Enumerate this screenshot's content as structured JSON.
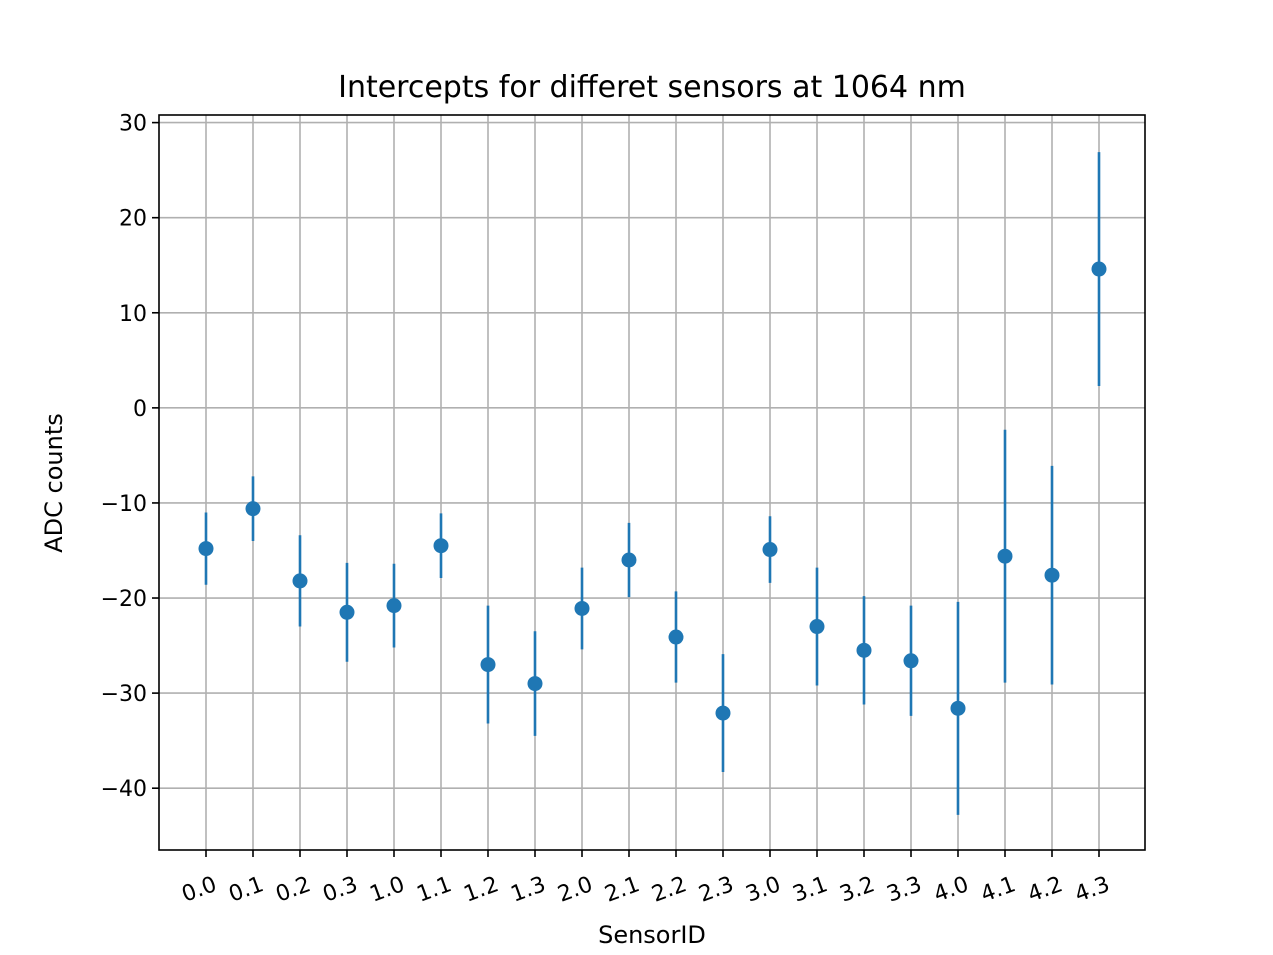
{
  "chart_data": {
    "type": "scatter",
    "title": "Intercepts for differet sensors at 1064 nm",
    "xlabel": "SensorID",
    "ylabel": "ADC counts",
    "categories": [
      "0.0",
      "0.1",
      "0.2",
      "0.3",
      "1.0",
      "1.1",
      "1.2",
      "1.3",
      "2.0",
      "2.1",
      "2.2",
      "2.3",
      "3.0",
      "3.1",
      "3.2",
      "3.3",
      "4.0",
      "4.1",
      "4.2",
      "4.3"
    ],
    "series": [
      {
        "values": [
          -14.8,
          -10.6,
          -18.2,
          -21.5,
          -20.8,
          -14.5,
          -27.0,
          -29.0,
          -21.1,
          -16.0,
          -24.1,
          -32.1,
          -14.9,
          -23.0,
          -25.5,
          -26.6,
          -31.6,
          -15.6,
          -17.6,
          14.6
        ],
        "errors": [
          3.8,
          3.4,
          4.8,
          5.2,
          4.4,
          3.4,
          6.2,
          5.5,
          4.3,
          3.9,
          4.8,
          6.2,
          3.5,
          6.2,
          5.7,
          5.8,
          11.2,
          13.3,
          11.5,
          12.3
        ],
        "color": "#1f77b4"
      }
    ],
    "yticks": [
      30,
      20,
      10,
      0,
      -10,
      -20,
      -30,
      -40
    ],
    "ytick_labels": [
      "30",
      "20",
      "10",
      "0",
      "−10",
      "−20",
      "−30",
      "−40"
    ],
    "ylim": [
      -46.5,
      30.8
    ],
    "grid": true,
    "xtick_rotation_deg": 20
  }
}
